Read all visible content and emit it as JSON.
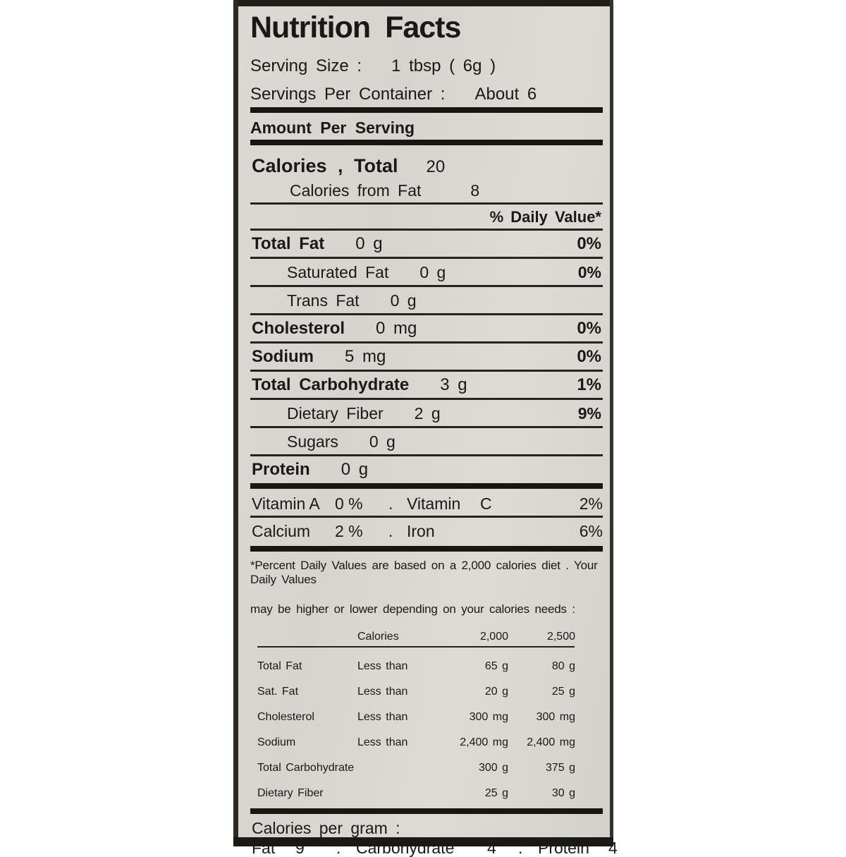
{
  "label": {
    "title": "Nutrition Facts",
    "serving_size_label": "Serving Size :",
    "serving_size_value": "1 tbsp ( 6g )",
    "servings_per_container_label": "Servings Per Container :",
    "servings_per_container_value": "About 6",
    "amount_per_serving": "Amount Per Serving",
    "calories_label": "Calories , Total",
    "calories_value": "20",
    "calories_from_fat_label": "Calories from Fat",
    "calories_from_fat_value": "8",
    "daily_value_header": "% Daily Value*",
    "nutrient_rows": [
      {
        "name": "Total Fat",
        "amount": "0 g",
        "dv": "0%"
      },
      {
        "name": "Saturated Fat",
        "amount": "0 g",
        "dv": "0%"
      },
      {
        "name": "Trans Fat",
        "amount": "0 g",
        "dv": ""
      },
      {
        "name": "Cholesterol",
        "amount": "0 mg",
        "dv": "0%"
      },
      {
        "name": "Sodium",
        "amount": "5 mg",
        "dv": "0%"
      },
      {
        "name": "Total Carbohydrate",
        "amount": "3 g",
        "dv": "1%"
      },
      {
        "name": "Dietary Fiber",
        "amount": "2 g",
        "dv": "9%"
      },
      {
        "name": "Sugars",
        "amount": "0 g",
        "dv": ""
      },
      {
        "name": "Protein",
        "amount": "0 g",
        "dv": ""
      }
    ],
    "vitamin_rows": [
      {
        "left_name": "Vitamin A",
        "left_value": "0 %",
        "sep": ".",
        "right_name": "Vitamin",
        "right_letter": "C",
        "right_value": "2%"
      },
      {
        "left_name": "Calcium",
        "left_value": "2 %",
        "sep": ".",
        "right_name": "Iron",
        "right_letter": "",
        "right_value": "6%"
      }
    ],
    "footnote_line1": "*Percent Daily Values are based on a 2,000 calories diet . Your Daily Values",
    "footnote_line2": "may be higher or lower depending on your calories needs :",
    "dv_table": {
      "header": {
        "col2": "Calories",
        "col3": "2,000",
        "col4": "2,500"
      },
      "rows": [
        {
          "name": "Total Fat",
          "qualifier": "Less than",
          "v2000": "65 g",
          "v2500": "80 g"
        },
        {
          "name": "Sat. Fat",
          "qualifier": "Less than",
          "v2000": "20 g",
          "v2500": "25 g"
        },
        {
          "name": "Cholesterol",
          "qualifier": "Less than",
          "v2000": "300 mg",
          "v2500": "300 mg"
        },
        {
          "name": "Sodium",
          "qualifier": "Less than",
          "v2000": "2,400 mg",
          "v2500": "2,400 mg"
        },
        {
          "name": "Total Carbohydrate",
          "qualifier": "",
          "v2000": "300 g",
          "v2500": "375 g"
        },
        {
          "name": "Dietary Fiber",
          "qualifier": "",
          "v2000": "25 g",
          "v2500": "30 g"
        }
      ]
    },
    "calories_per_gram_label": "Calories per gram :",
    "cpg": {
      "fat_label": "Fat",
      "fat_value": "9",
      "sep": ".",
      "carb_label": "Carbohydrate",
      "carb_value": "4",
      "protein_label": "Protein",
      "protein_value": "4"
    }
  },
  "colors": {
    "label_background": "#d9d6d1",
    "ink": "#1b1815",
    "page_background": "#ffffff"
  }
}
